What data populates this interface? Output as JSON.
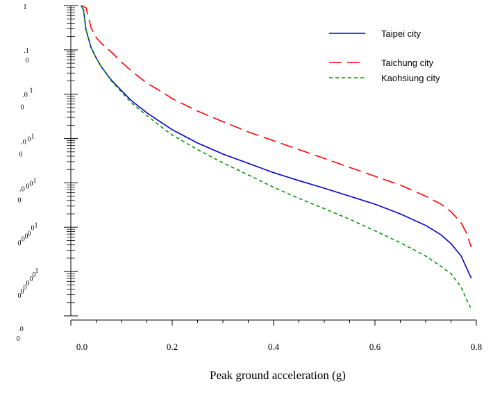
{
  "chart_data": {
    "type": "line",
    "title": "",
    "xlabel": "Peak ground acceleration (g)",
    "ylabel": "",
    "xlim": [
      0,
      0.8
    ],
    "ylim_log10": [
      -7,
      0
    ],
    "y_scale": "log",
    "x_ticks": [
      {
        "value": 0.0,
        "label": "0.0"
      },
      {
        "value": 0.2,
        "label": "0.2"
      },
      {
        "value": 0.4,
        "label": "0.4"
      },
      {
        "value": 0.6,
        "label": "0.6"
      },
      {
        "value": 0.8,
        "label": "0.8"
      }
    ],
    "y_tick_labels": [
      {
        "log10": 0,
        "parts": [
          {
            "t": "1",
            "dx": -6,
            "dy": 5
          }
        ]
      },
      {
        "log10": -1,
        "parts": [
          {
            "t": ".1",
            "dx": -4,
            "dy": 4
          },
          {
            "t": "0",
            "dx": -3,
            "dy": 18
          }
        ]
      },
      {
        "log10": -2,
        "parts": [
          {
            "t": ".0",
            "dx": -6,
            "dy": 4
          },
          {
            "t": "1",
            "dx": 3,
            "dy": -2
          },
          {
            "t": "0",
            "dx": -10,
            "dy": 22
          }
        ]
      },
      {
        "log10": -3,
        "parts": [
          {
            "t": ".0",
            "dx": -8,
            "dy": 8
          },
          {
            "t": "0",
            "dx": 0,
            "dy": 4
          },
          {
            "t": "1",
            "dx": 5,
            "dy": 0
          },
          {
            "t": "0",
            "dx": -12,
            "dy": 26
          }
        ]
      },
      {
        "log10": -4,
        "parts": [
          {
            "t": ".0",
            "dx": -10,
            "dy": 12
          },
          {
            "t": "0",
            "dx": -2,
            "dy": 8
          },
          {
            "t": "0",
            "dx": 3,
            "dy": 4
          },
          {
            "t": "1",
            "dx": 8,
            "dy": 0
          },
          {
            "t": "0",
            "dx": -14,
            "dy": 28
          }
        ]
      },
      {
        "log10": -5,
        "parts": [
          {
            "t": "0",
            "dx": -14,
            "dy": 26
          },
          {
            "t": ".0",
            "dx": -10,
            "dy": 20
          },
          {
            "t": "0",
            "dx": -4,
            "dy": 16
          },
          {
            "t": "0",
            "dx": 0,
            "dy": 12
          },
          {
            "t": "0",
            "dx": 5,
            "dy": 4
          },
          {
            "t": "1",
            "dx": 10,
            "dy": 0
          }
        ]
      },
      {
        "log10": -6,
        "parts": [
          {
            "t": "0",
            "dx": -14,
            "dy": 38
          },
          {
            "t": "0",
            "dx": -10,
            "dy": 32
          },
          {
            "t": "0",
            "dx": -6,
            "dy": 26
          },
          {
            "t": "0",
            "dx": -2,
            "dy": 20
          },
          {
            "t": "0",
            "dx": 3,
            "dy": 14
          },
          {
            "t": "0",
            "dx": 7,
            "dy": 8
          },
          {
            "t": "1",
            "dx": 11,
            "dy": 2
          }
        ]
      },
      {
        "log10": -7,
        "parts": [
          {
            "t": ".0",
            "dx": -12,
            "dy": 22
          },
          {
            "t": "0",
            "dx": -16,
            "dy": 36
          }
        ]
      }
    ],
    "legend": {
      "placement": "top-right"
    },
    "series": [
      {
        "name": "Taipei city",
        "color": "#0000cc",
        "dash": "none",
        "x": [
          0.02,
          0.025,
          0.03,
          0.04,
          0.05,
          0.06,
          0.08,
          0.1,
          0.12,
          0.15,
          0.18,
          0.2,
          0.25,
          0.3,
          0.35,
          0.4,
          0.45,
          0.5,
          0.55,
          0.6,
          0.65,
          0.7,
          0.73,
          0.75,
          0.77,
          0.78,
          0.79
        ],
        "log10y": [
          0.0,
          -0.1,
          -0.55,
          -0.95,
          -1.18,
          -1.38,
          -1.68,
          -1.92,
          -2.15,
          -2.42,
          -2.65,
          -2.8,
          -3.1,
          -3.35,
          -3.56,
          -3.77,
          -3.95,
          -4.12,
          -4.3,
          -4.48,
          -4.7,
          -4.96,
          -5.17,
          -5.37,
          -5.65,
          -5.9,
          -6.15
        ]
      },
      {
        "name": "Taichung city",
        "color": "#ff0000",
        "dash": "18,8",
        "x": [
          0.02,
          0.03,
          0.04,
          0.05,
          0.06,
          0.08,
          0.1,
          0.12,
          0.15,
          0.18,
          0.2,
          0.25,
          0.3,
          0.35,
          0.4,
          0.45,
          0.5,
          0.55,
          0.6,
          0.65,
          0.7,
          0.73,
          0.75,
          0.77,
          0.78,
          0.79
        ],
        "log10y": [
          0.0,
          -0.05,
          -0.5,
          -0.72,
          -0.85,
          -1.05,
          -1.28,
          -1.48,
          -1.75,
          -1.95,
          -2.1,
          -2.38,
          -2.62,
          -2.85,
          -3.05,
          -3.25,
          -3.45,
          -3.65,
          -3.85,
          -4.05,
          -4.3,
          -4.48,
          -4.65,
          -4.9,
          -5.12,
          -5.45
        ]
      },
      {
        "name": "Kaohsiung city",
        "color": "#009900",
        "dash": "5,4",
        "x": [
          0.02,
          0.025,
          0.03,
          0.04,
          0.05,
          0.06,
          0.08,
          0.1,
          0.12,
          0.15,
          0.18,
          0.2,
          0.25,
          0.3,
          0.35,
          0.4,
          0.45,
          0.5,
          0.55,
          0.6,
          0.65,
          0.7,
          0.73,
          0.75,
          0.77,
          0.78,
          0.79
        ],
        "log10y": [
          0.0,
          -0.1,
          -0.55,
          -0.95,
          -1.18,
          -1.38,
          -1.7,
          -1.95,
          -2.2,
          -2.48,
          -2.75,
          -2.92,
          -3.25,
          -3.55,
          -3.82,
          -4.1,
          -4.35,
          -4.58,
          -4.82,
          -5.08,
          -5.35,
          -5.65,
          -5.88,
          -6.05,
          -6.35,
          -6.62,
          -6.85
        ]
      }
    ]
  }
}
